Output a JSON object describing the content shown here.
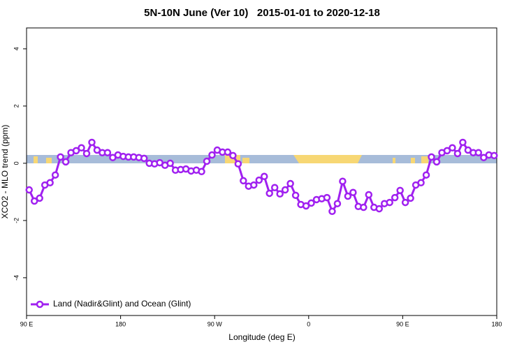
{
  "chart_data": {
    "type": "line",
    "title": "5N-10N June (Ver 10)   2015-01-01 to 2020-12-18",
    "x_label": "Longitude (deg E)",
    "y_label": "XCO2 - MLO trend (ppm)",
    "xlim": [
      90,
      540
    ],
    "ylim": [
      -5.32,
      4.73
    ],
    "xticks": [
      {
        "value": 90,
        "label": "90 E"
      },
      180,
      {
        "value": 270,
        "label": "90 W"
      },
      {
        "value": 360,
        "label": "0"
      },
      {
        "value": 450,
        "label": "90 E"
      },
      {
        "value": 540,
        "label": "180"
      }
    ],
    "yticks": [
      -4,
      -2,
      0,
      2,
      4
    ],
    "legend": "bottom-left",
    "x": [
      92.5,
      97.5,
      102.5,
      107.5,
      112.5,
      117.5,
      122.5,
      127.5,
      132.5,
      137.5,
      142.5,
      147.5,
      152.5,
      157.5,
      162.5,
      167.5,
      172.5,
      177.5,
      182.5,
      187.5,
      192.5,
      197.5,
      202.5,
      207.5,
      212.5,
      217.5,
      222.5,
      227.5,
      232.5,
      237.5,
      242.5,
      247.5,
      252.5,
      257.5,
      262.5,
      267.5,
      272.5,
      277.5,
      282.5,
      287.5,
      292.5,
      297.5,
      302.5,
      307.5,
      312.5,
      317.5,
      322.5,
      327.5,
      332.5,
      337.5,
      342.5,
      347.5,
      352.5,
      357.5,
      362.5,
      367.5,
      372.5,
      377.5,
      382.5,
      387.5,
      392.5,
      397.5,
      402.5,
      407.5,
      412.5,
      417.5,
      422.5,
      427.5,
      432.5,
      437.5,
      442.5,
      447.5,
      452.5,
      457.5,
      462.5,
      467.5,
      472.5,
      477.5,
      482.5,
      487.5,
      492.5,
      497.5,
      502.5,
      507.5,
      512.5,
      517.5,
      522.5,
      527.5,
      532.5,
      537.5
    ],
    "series": [
      {
        "name": "Land (Nadir&Glint) and Ocean (Glint)",
        "color": "#a020f0",
        "values": [
          -0.93,
          -1.32,
          -1.22,
          -0.76,
          -0.68,
          -0.41,
          0.22,
          0.05,
          0.37,
          0.44,
          0.54,
          0.34,
          0.73,
          0.46,
          0.37,
          0.37,
          0.2,
          0.29,
          0.24,
          0.22,
          0.22,
          0.2,
          0.17,
          0.0,
          -0.02,
          0.02,
          -0.07,
          0.0,
          -0.24,
          -0.22,
          -0.2,
          -0.27,
          -0.24,
          -0.29,
          0.07,
          0.29,
          0.46,
          0.39,
          0.39,
          0.27,
          -0.02,
          -0.61,
          -0.8,
          -0.76,
          -0.59,
          -0.46,
          -1.05,
          -0.85,
          -1.07,
          -0.93,
          -0.71,
          -1.12,
          -1.44,
          -1.49,
          -1.39,
          -1.27,
          -1.24,
          -1.2,
          -1.68,
          -1.41,
          -0.63,
          -1.15,
          -1.02,
          -1.51,
          -1.54,
          -1.1,
          -1.54,
          -1.59,
          -1.41,
          -1.37,
          -1.2,
          -0.95,
          -1.37,
          -1.22,
          -0.76,
          -0.68,
          -0.41,
          0.22,
          0.05,
          0.37,
          0.44,
          0.54,
          0.34,
          0.73,
          0.46,
          0.37,
          0.37,
          0.2,
          0.29,
          0.27
        ]
      }
    ]
  }
}
